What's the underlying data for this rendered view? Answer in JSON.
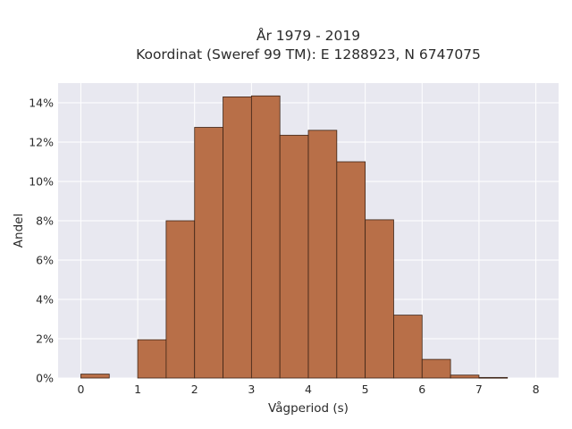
{
  "chart_data": {
    "type": "bar",
    "title_lines": [
      "År 1979 - 2019",
      "Koordinat (Sweref 99 TM): E 1288923, N 6747075"
    ],
    "xlabel": "Vågperiod (s)",
    "ylabel": "Andel",
    "bin_width": 0.5,
    "bins": [
      {
        "start": 0.0,
        "value": 0.2
      },
      {
        "start": 0.5,
        "value": 0.0
      },
      {
        "start": 1.0,
        "value": 1.95
      },
      {
        "start": 1.5,
        "value": 8.0
      },
      {
        "start": 2.0,
        "value": 12.75
      },
      {
        "start": 2.5,
        "value": 14.3
      },
      {
        "start": 3.0,
        "value": 14.35
      },
      {
        "start": 3.5,
        "value": 12.35
      },
      {
        "start": 4.0,
        "value": 12.6
      },
      {
        "start": 4.5,
        "value": 11.0
      },
      {
        "start": 5.0,
        "value": 8.05
      },
      {
        "start": 5.5,
        "value": 3.2
      },
      {
        "start": 6.0,
        "value": 0.95
      },
      {
        "start": 6.5,
        "value": 0.15
      },
      {
        "start": 7.0,
        "value": 0.03
      },
      {
        "start": 7.5,
        "value": 0.0
      }
    ],
    "xlim": [
      -0.4,
      8.4
    ],
    "ylim": [
      0,
      15
    ],
    "xticks": [
      0,
      1,
      2,
      3,
      4,
      5,
      6,
      7,
      8
    ],
    "yticks": [
      0,
      2,
      4,
      6,
      8,
      10,
      12,
      14
    ],
    "ytick_suffix": "%",
    "grid": true,
    "colors": {
      "bar_fill": "#b86f48",
      "bar_edge": "#3d2416",
      "plot_bg": "#e8e8f0",
      "grid": "#ffffff",
      "text": "#2b2b2b"
    }
  }
}
